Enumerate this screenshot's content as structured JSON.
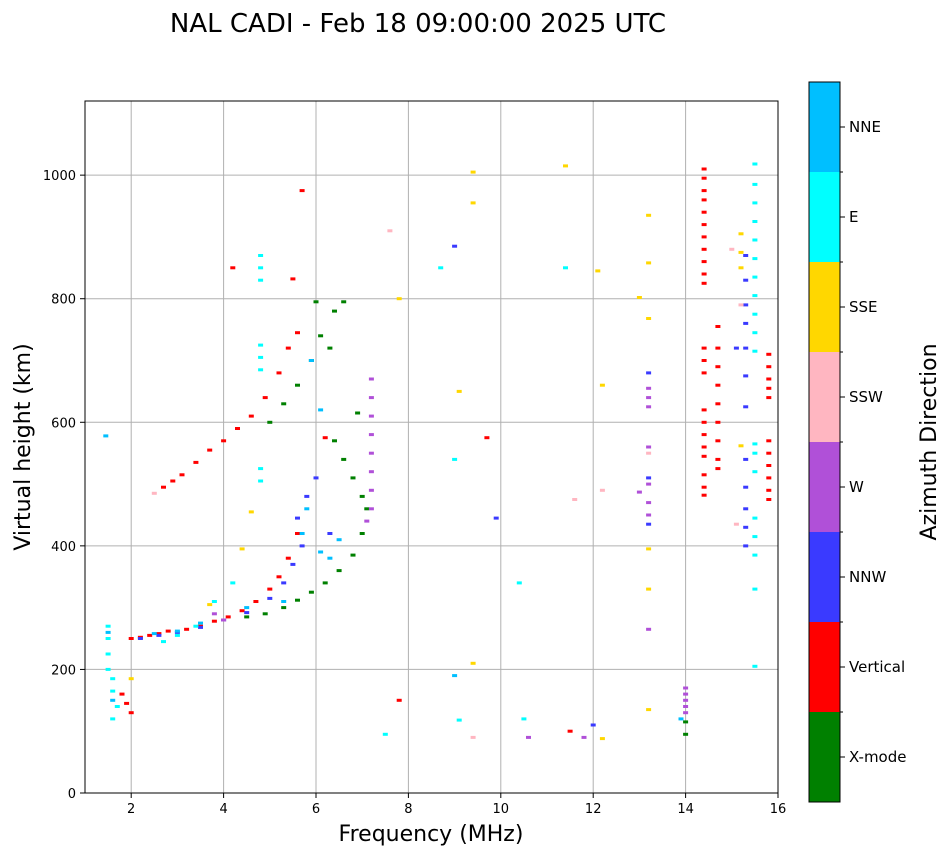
{
  "chart_data": {
    "type": "scatter",
    "title": "NAL CADI - Feb 18 09:00:00 2025 UTC",
    "xlabel": "Frequency (MHz)",
    "ylabel": "Virtual height (km)",
    "xlim": [
      1,
      16
    ],
    "ylim": [
      0,
      1120
    ],
    "xticks": [
      2,
      4,
      6,
      8,
      10,
      12,
      14,
      16
    ],
    "yticks": [
      0,
      200,
      400,
      600,
      800,
      1000
    ],
    "grid": true,
    "colorbar": {
      "title": "Azimuth Direction",
      "categories": [
        {
          "name": "X-mode",
          "color": "#008000"
        },
        {
          "name": "Vertical",
          "color": "#ff0000"
        },
        {
          "name": "NNW",
          "color": "#3a3aff"
        },
        {
          "name": "W",
          "color": "#b050d8"
        },
        {
          "name": "SSW",
          "color": "#ffb6c1"
        },
        {
          "name": "SSE",
          "color": "#ffd700"
        },
        {
          "name": "E",
          "color": "#00ffff"
        },
        {
          "name": "NNE",
          "color": "#00bfff"
        }
      ]
    },
    "series": [
      {
        "name": "Vertical",
        "points": [
          [
            1.9,
            145
          ],
          [
            2.0,
            130
          ],
          [
            1.8,
            160
          ],
          [
            2.0,
            250
          ],
          [
            2.2,
            252
          ],
          [
            2.4,
            255
          ],
          [
            2.6,
            258
          ],
          [
            2.8,
            262
          ],
          [
            3.2,
            265
          ],
          [
            3.5,
            270
          ],
          [
            3.8,
            278
          ],
          [
            4.1,
            285
          ],
          [
            4.4,
            295
          ],
          [
            4.7,
            310
          ],
          [
            5.0,
            330
          ],
          [
            5.2,
            350
          ],
          [
            5.4,
            380
          ],
          [
            5.6,
            420
          ],
          [
            2.7,
            495
          ],
          [
            2.9,
            505
          ],
          [
            3.1,
            515
          ],
          [
            3.4,
            535
          ],
          [
            3.7,
            555
          ],
          [
            4.0,
            570
          ],
          [
            4.3,
            590
          ],
          [
            4.6,
            610
          ],
          [
            4.9,
            640
          ],
          [
            5.2,
            680
          ],
          [
            5.4,
            720
          ],
          [
            5.6,
            745
          ],
          [
            4.2,
            850
          ],
          [
            5.5,
            832
          ],
          [
            5.7,
            975
          ],
          [
            6.2,
            575
          ],
          [
            9.7,
            575
          ],
          [
            7.8,
            150
          ],
          [
            11.5,
            100
          ],
          [
            14.4,
            1010
          ],
          [
            14.4,
            995
          ],
          [
            14.4,
            975
          ],
          [
            14.4,
            960
          ],
          [
            14.4,
            940
          ],
          [
            14.4,
            920
          ],
          [
            14.4,
            900
          ],
          [
            14.4,
            880
          ],
          [
            14.4,
            860
          ],
          [
            14.4,
            840
          ],
          [
            14.4,
            825
          ],
          [
            14.4,
            620
          ],
          [
            14.4,
            600
          ],
          [
            14.4,
            580
          ],
          [
            14.4,
            560
          ],
          [
            14.4,
            545
          ],
          [
            14.4,
            720
          ],
          [
            14.4,
            700
          ],
          [
            14.4,
            680
          ],
          [
            14.4,
            515
          ],
          [
            14.4,
            495
          ],
          [
            14.4,
            482
          ],
          [
            14.7,
            755
          ],
          [
            14.7,
            720
          ],
          [
            14.7,
            690
          ],
          [
            14.7,
            660
          ],
          [
            14.7,
            630
          ],
          [
            14.7,
            600
          ],
          [
            14.7,
            570
          ],
          [
            14.7,
            540
          ],
          [
            14.7,
            525
          ],
          [
            15.8,
            710
          ],
          [
            15.8,
            690
          ],
          [
            15.8,
            670
          ],
          [
            15.8,
            655
          ],
          [
            15.8,
            640
          ],
          [
            15.8,
            570
          ],
          [
            15.8,
            550
          ],
          [
            15.8,
            530
          ],
          [
            15.8,
            510
          ],
          [
            15.8,
            490
          ],
          [
            15.8,
            475
          ]
        ]
      },
      {
        "name": "X-mode",
        "points": [
          [
            4.5,
            285
          ],
          [
            4.9,
            290
          ],
          [
            5.3,
            300
          ],
          [
            5.6,
            312
          ],
          [
            5.9,
            325
          ],
          [
            6.2,
            340
          ],
          [
            6.5,
            360
          ],
          [
            6.8,
            385
          ],
          [
            7.0,
            420
          ],
          [
            7.1,
            460
          ],
          [
            7.0,
            480
          ],
          [
            6.8,
            510
          ],
          [
            6.6,
            540
          ],
          [
            6.4,
            570
          ],
          [
            5.0,
            600
          ],
          [
            5.3,
            630
          ],
          [
            5.6,
            660
          ],
          [
            5.9,
            700
          ],
          [
            6.1,
            740
          ],
          [
            6.4,
            780
          ],
          [
            6.6,
            795
          ],
          [
            6.0,
            795
          ],
          [
            6.3,
            720
          ],
          [
            6.9,
            615
          ],
          [
            14.0,
            95
          ],
          [
            14.0,
            115
          ]
        ]
      },
      {
        "name": "NNW",
        "points": [
          [
            2.2,
            250
          ],
          [
            2.6,
            255
          ],
          [
            3.0,
            260
          ],
          [
            3.5,
            268
          ],
          [
            4.0,
            280
          ],
          [
            4.5,
            292
          ],
          [
            5.0,
            315
          ],
          [
            5.3,
            340
          ],
          [
            5.5,
            370
          ],
          [
            5.7,
            400
          ],
          [
            5.6,
            445
          ],
          [
            5.8,
            480
          ],
          [
            6.0,
            510
          ],
          [
            6.3,
            420
          ],
          [
            9.0,
            885
          ],
          [
            9.9,
            445
          ],
          [
            12.0,
            110
          ],
          [
            13.2,
            680
          ],
          [
            13.2,
            510
          ],
          [
            13.2,
            435
          ],
          [
            15.3,
            870
          ],
          [
            15.3,
            830
          ],
          [
            15.3,
            790
          ],
          [
            15.3,
            760
          ],
          [
            15.3,
            720
          ],
          [
            15.3,
            675
          ],
          [
            15.3,
            625
          ],
          [
            15.3,
            540
          ],
          [
            15.3,
            495
          ],
          [
            15.3,
            460
          ],
          [
            15.3,
            430
          ],
          [
            15.3,
            400
          ],
          [
            15.1,
            720
          ]
        ]
      },
      {
        "name": "W",
        "points": [
          [
            7.2,
            670
          ],
          [
            7.2,
            640
          ],
          [
            7.2,
            610
          ],
          [
            7.2,
            580
          ],
          [
            7.2,
            550
          ],
          [
            7.2,
            520
          ],
          [
            7.2,
            490
          ],
          [
            7.2,
            460
          ],
          [
            7.1,
            440
          ],
          [
            4.0,
            280
          ],
          [
            3.8,
            290
          ],
          [
            10.6,
            90
          ],
          [
            11.8,
            90
          ],
          [
            13.2,
            655
          ],
          [
            13.2,
            640
          ],
          [
            13.2,
            625
          ],
          [
            13.2,
            560
          ],
          [
            13.2,
            500
          ],
          [
            13.2,
            470
          ],
          [
            13.2,
            450
          ],
          [
            13.2,
            265
          ],
          [
            13.0,
            487
          ],
          [
            14.0,
            170
          ],
          [
            14.0,
            160
          ],
          [
            14.0,
            150
          ],
          [
            14.0,
            140
          ],
          [
            14.0,
            130
          ]
        ]
      },
      {
        "name": "SSW",
        "points": [
          [
            2.5,
            485
          ],
          [
            7.6,
            910
          ],
          [
            9.4,
            90
          ],
          [
            11.6,
            475
          ],
          [
            12.2,
            490
          ],
          [
            13.2,
            550
          ],
          [
            15.2,
            790
          ],
          [
            15.1,
            435
          ],
          [
            15.0,
            880
          ]
        ]
      },
      {
        "name": "SSE",
        "points": [
          [
            2.0,
            185
          ],
          [
            3.7,
            305
          ],
          [
            4.6,
            455
          ],
          [
            4.4,
            395
          ],
          [
            7.8,
            800
          ],
          [
            9.1,
            650
          ],
          [
            9.4,
            1005
          ],
          [
            9.4,
            955
          ],
          [
            9.4,
            210
          ],
          [
            11.4,
            1015
          ],
          [
            12.1,
            845
          ],
          [
            12.2,
            660
          ],
          [
            12.2,
            88
          ],
          [
            13.0,
            802
          ],
          [
            13.2,
            935
          ],
          [
            13.2,
            858
          ],
          [
            13.2,
            768
          ],
          [
            13.2,
            395
          ],
          [
            13.2,
            330
          ],
          [
            13.2,
            135
          ],
          [
            15.2,
            905
          ],
          [
            15.2,
            875
          ],
          [
            15.2,
            850
          ],
          [
            15.2,
            562
          ]
        ]
      },
      {
        "name": "E",
        "points": [
          [
            1.5,
            270
          ],
          [
            1.5,
            250
          ],
          [
            1.5,
            225
          ],
          [
            1.5,
            200
          ],
          [
            1.6,
            185
          ],
          [
            1.6,
            165
          ],
          [
            1.7,
            140
          ],
          [
            1.6,
            120
          ],
          [
            2.7,
            245
          ],
          [
            3.0,
            255
          ],
          [
            3.4,
            270
          ],
          [
            3.8,
            310
          ],
          [
            4.2,
            340
          ],
          [
            4.8,
            870
          ],
          [
            4.8,
            850
          ],
          [
            4.8,
            830
          ],
          [
            4.8,
            725
          ],
          [
            4.8,
            705
          ],
          [
            4.8,
            685
          ],
          [
            4.8,
            525
          ],
          [
            4.8,
            505
          ],
          [
            7.5,
            95
          ],
          [
            8.7,
            850
          ],
          [
            9.0,
            540
          ],
          [
            9.1,
            118
          ],
          [
            10.4,
            340
          ],
          [
            10.5,
            120
          ],
          [
            11.4,
            850
          ],
          [
            15.5,
            1018
          ],
          [
            15.5,
            985
          ],
          [
            15.5,
            955
          ],
          [
            15.5,
            925
          ],
          [
            15.5,
            895
          ],
          [
            15.5,
            865
          ],
          [
            15.5,
            835
          ],
          [
            15.5,
            805
          ],
          [
            15.5,
            775
          ],
          [
            15.5,
            745
          ],
          [
            15.5,
            715
          ],
          [
            15.5,
            565
          ],
          [
            15.5,
            550
          ],
          [
            15.5,
            520
          ],
          [
            15.5,
            445
          ],
          [
            15.5,
            415
          ],
          [
            15.5,
            385
          ],
          [
            15.5,
            330
          ],
          [
            15.5,
            205
          ]
        ]
      },
      {
        "name": "NNE",
        "points": [
          [
            1.45,
            578
          ],
          [
            1.5,
            260
          ],
          [
            1.6,
            150
          ],
          [
            2.5,
            258
          ],
          [
            3.0,
            262
          ],
          [
            3.5,
            275
          ],
          [
            4.5,
            300
          ],
          [
            5.3,
            310
          ],
          [
            5.7,
            420
          ],
          [
            5.8,
            460
          ],
          [
            5.9,
            700
          ],
          [
            6.1,
            390
          ],
          [
            6.3,
            380
          ],
          [
            6.5,
            410
          ],
          [
            9.0,
            190
          ],
          [
            13.9,
            120
          ],
          [
            6.1,
            620
          ]
        ]
      }
    ]
  }
}
